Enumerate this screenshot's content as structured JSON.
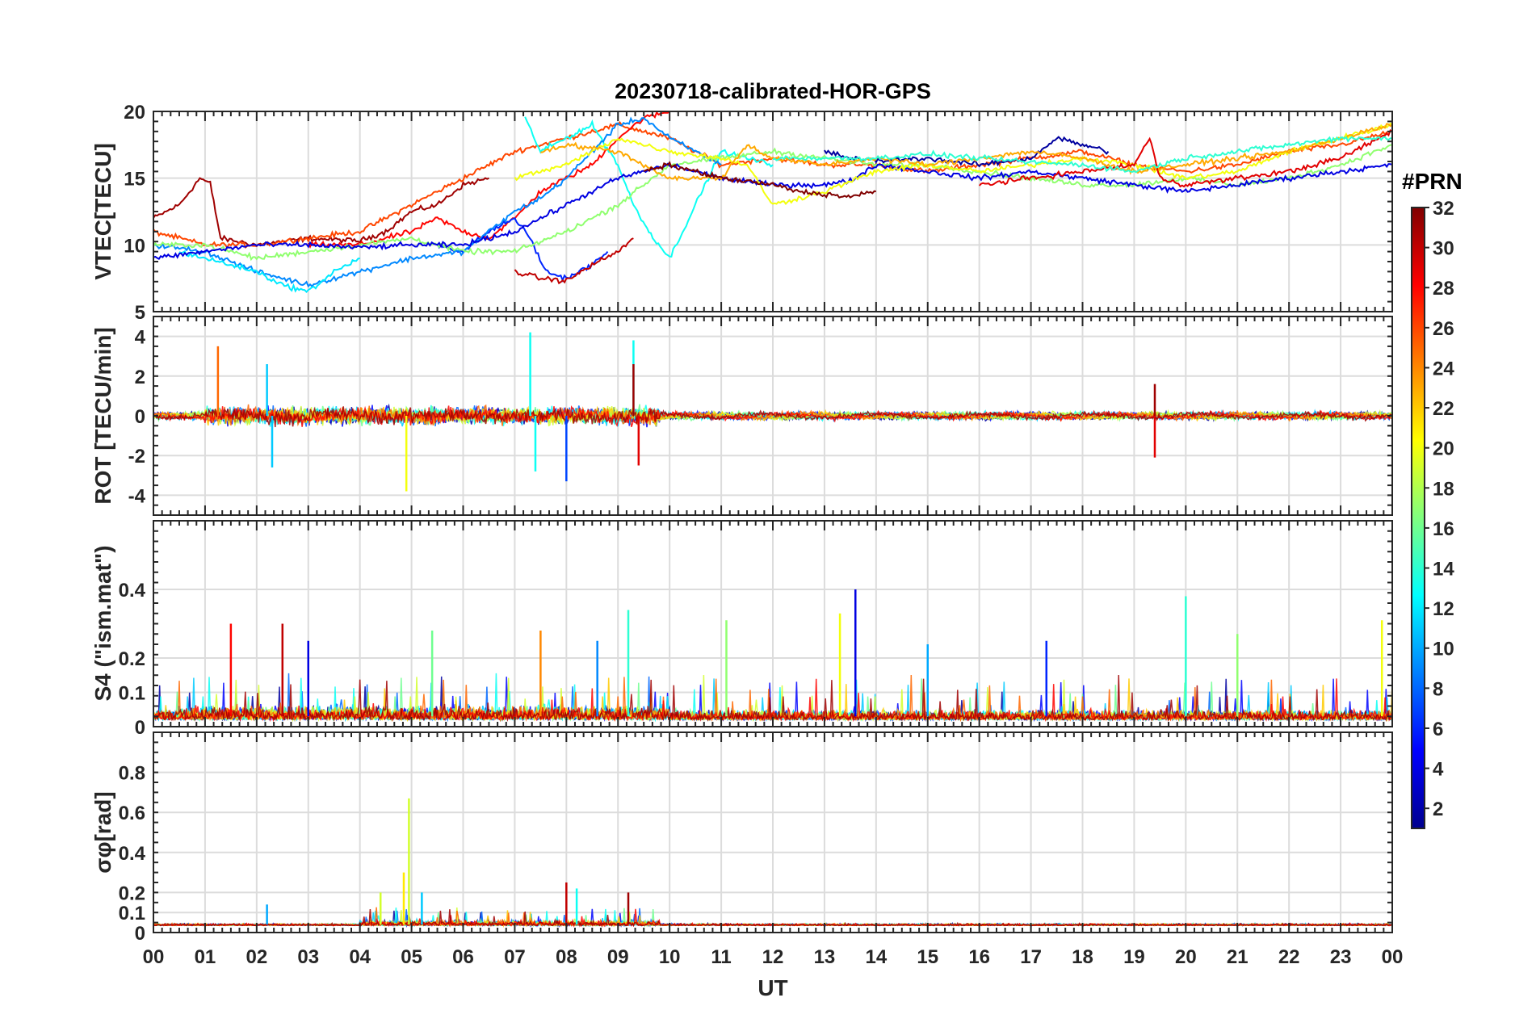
{
  "chart_data": {
    "type": "line",
    "title": "20230718-calibrated-HOR-GPS",
    "xlabel": "UT",
    "x_ticks": [
      "00",
      "01",
      "02",
      "03",
      "04",
      "05",
      "06",
      "07",
      "08",
      "09",
      "10",
      "11",
      "12",
      "13",
      "14",
      "15",
      "16",
      "17",
      "18",
      "19",
      "20",
      "21",
      "22",
      "23",
      "00"
    ],
    "xlim": [
      0,
      24
    ],
    "grid": true,
    "colorbar": {
      "title": "#PRN",
      "range": [
        1,
        32
      ],
      "ticks": [
        "2",
        "4",
        "6",
        "8",
        "10",
        "12",
        "14",
        "16",
        "18",
        "20",
        "22",
        "24",
        "26",
        "28",
        "30",
        "32"
      ],
      "colormap": "jet"
    },
    "panels": [
      {
        "ylabel": "VTEC[TECU]",
        "ylim": [
          5,
          20
        ],
        "y_ticks": [
          "5",
          "10",
          "15",
          "20"
        ],
        "series": [
          {
            "name": "PRN 31",
            "prn": 31,
            "x": [
              0,
              0.5,
              0.9,
              1.1,
              1.3,
              2,
              3,
              4,
              4.5,
              5,
              5.5,
              6,
              6.5
            ],
            "y": [
              12,
              13,
              15,
              14.6,
              10.5,
              10,
              10.5,
              10.3,
              11,
              12.5,
              13,
              14.5,
              15
            ]
          },
          {
            "name": "PRN 26",
            "prn": 26,
            "x": [
              0,
              1,
              2,
              3,
              4,
              5,
              5.5,
              6,
              6.5,
              7,
              7.5,
              8,
              9,
              10,
              11,
              12,
              13,
              14,
              15,
              16,
              17,
              18,
              19,
              20,
              21,
              22,
              23,
              24
            ],
            "y": [
              11,
              10,
              10,
              10.5,
              11,
              13,
              14,
              15,
              16,
              17,
              17.5,
              18,
              19,
              18,
              16,
              16.5,
              16,
              16,
              15.5,
              16,
              16.5,
              17,
              16,
              15.5,
              16,
              17,
              17.5,
              18.5
            ]
          },
          {
            "name": "PRN 28",
            "prn": 28,
            "x": [
              3,
              4,
              5,
              5.5,
              6,
              6.5,
              7,
              7.5,
              8,
              8.5,
              9,
              9.5,
              10
            ],
            "y": [
              10,
              10,
              11,
              12,
              11,
              10.5,
              12,
              14,
              15,
              16,
              18,
              19.5,
              20
            ]
          },
          {
            "name": "PRN 6",
            "prn": 6,
            "x": [
              5.5,
              6,
              6.5,
              7,
              7.3,
              7.6,
              8,
              8.5,
              8.8
            ],
            "y": [
              10,
              9.5,
              11,
              12,
              10.5,
              8,
              7.5,
              8.5,
              9.5
            ]
          },
          {
            "name": "PRN 30",
            "prn": 30,
            "x": [
              7,
              7.5,
              8,
              8.5,
              9,
              9.3
            ],
            "y": [
              8,
              7.5,
              7.3,
              8.5,
              9.5,
              10.5
            ]
          },
          {
            "name": "PRN 13",
            "prn": 13,
            "x": [
              7.2,
              7.5,
              8,
              8.5,
              9,
              9.3,
              9.6,
              10,
              11,
              12
            ],
            "y": [
              19.5,
              17,
              18,
              19,
              16,
              13,
              11,
              9,
              17,
              16
            ]
          },
          {
            "name": "PRN 9",
            "prn": 9,
            "x": [
              0,
              1,
              2,
              2.5,
              3,
              4,
              5,
              6,
              6.5,
              7,
              7.5,
              8,
              8.5,
              9,
              9.5,
              10,
              11
            ],
            "y": [
              10,
              9.5,
              8,
              7.5,
              7,
              8,
              9,
              9.5,
              11,
              12.5,
              13.5,
              15,
              17,
              19,
              19.5,
              18,
              16
            ]
          },
          {
            "name": "PRN 12",
            "prn": 12,
            "x": [
              0.5,
              1,
              2,
              2.5,
              3,
              3.5,
              4
            ],
            "y": [
              9.5,
              9,
              8,
              7,
              6.5,
              8,
              9
            ]
          },
          {
            "name": "PRN 17",
            "prn": 17,
            "x": [
              0,
              1,
              2,
              3,
              4,
              5,
              6,
              7,
              8,
              9,
              10,
              11,
              12,
              13,
              14,
              15,
              16,
              17,
              18,
              19,
              20,
              21,
              22,
              23,
              24
            ],
            "y": [
              10,
              10,
              9,
              9.5,
              10,
              10.5,
              9.5,
              9.5,
              11,
              13,
              16,
              16.5,
              17,
              16.5,
              16,
              16,
              15.5,
              15,
              14.5,
              14.5,
              15,
              14.5,
              15,
              16,
              17.5
            ]
          },
          {
            "name": "PRN 4",
            "prn": 4,
            "x": [
              0,
              1,
              2,
              3,
              4,
              5,
              6,
              7,
              8,
              9,
              10,
              11,
              12,
              13,
              13.5,
              14,
              15,
              16,
              17,
              18,
              19,
              20,
              21,
              22,
              23,
              24
            ],
            "y": [
              9,
              9.5,
              10,
              10,
              9.8,
              10,
              10,
              11,
              13,
              15,
              16,
              15,
              14.5,
              14.5,
              14.8,
              16,
              15.5,
              15,
              15.5,
              15,
              14.5,
              14,
              14.5,
              15,
              15.5,
              16
            ]
          },
          {
            "name": "PRN 2",
            "prn": 2,
            "x": [
              13,
              13.5,
              14,
              15,
              16,
              17,
              17.5,
              18,
              18.5
            ],
            "y": [
              17,
              16.5,
              16.3,
              16.5,
              16,
              16.5,
              18,
              17.5,
              17
            ]
          },
          {
            "name": "PRN 20",
            "prn": 20,
            "x": [
              7,
              8,
              9,
              10,
              11,
              11.5,
              12,
              13,
              14,
              15,
              16,
              17,
              18,
              19,
              20,
              21,
              22,
              23,
              24
            ],
            "y": [
              15,
              16,
              18,
              17,
              16.5,
              16,
              13,
              14,
              15.5,
              16,
              15.5,
              16,
              16.5,
              16,
              15,
              15.5,
              17,
              18,
              19
            ]
          },
          {
            "name": "PRN 23",
            "prn": 23,
            "x": [
              7.5,
              8,
              9,
              10,
              11,
              11.5,
              12,
              13,
              14,
              15,
              16,
              17,
              18,
              19,
              20,
              21,
              22,
              23,
              24
            ],
            "y": [
              17,
              17.5,
              17,
              15,
              15,
              17.5,
              16.5,
              16,
              16.5,
              16,
              16.5,
              17,
              16.5,
              15.5,
              16,
              16.5,
              17,
              18,
              19
            ]
          },
          {
            "name": "PRN 32",
            "prn": 32,
            "x": [
              9.5,
              10,
              11,
              12,
              12.5,
              13,
              13.5,
              14
            ],
            "y": [
              15.5,
              16,
              15,
              14.5,
              14,
              13.8,
              13.6,
              14
            ]
          },
          {
            "name": "PRN 29",
            "prn": 29,
            "x": [
              16,
              17,
              18,
              19,
              19.3,
              19.5,
              20,
              21,
              22,
              23,
              24
            ],
            "y": [
              14.5,
              15,
              15.5,
              16,
              18,
              15,
              14.5,
              15,
              15.5,
              16.5,
              18.5
            ]
          },
          {
            "name": "PRN 14",
            "prn": 14,
            "x": [
              12,
              13,
              14,
              15,
              16,
              17,
              18,
              19,
              20,
              21,
              22,
              23,
              24
            ],
            "y": [
              16.5,
              16.5,
              16.5,
              16.8,
              16.5,
              16.2,
              16,
              15.5,
              16.5,
              17,
              17.5,
              18,
              18
            ]
          }
        ]
      },
      {
        "ylabel": "ROT [TECU/min]",
        "ylim": [
          -5,
          5
        ],
        "y_ticks": [
          "-4",
          "-2",
          "0",
          "2",
          "4"
        ],
        "spikes": [
          {
            "prn": 25,
            "x": 1.25,
            "y": 3.5
          },
          {
            "prn": 11,
            "x": 2.2,
            "y": 2.6
          },
          {
            "prn": 11,
            "x": 2.3,
            "y": -2.6
          },
          {
            "prn": 20,
            "x": 4.9,
            "y": -3.8
          },
          {
            "prn": 13,
            "x": 7.3,
            "y": 4.2
          },
          {
            "prn": 13,
            "x": 7.4,
            "y": -2.8
          },
          {
            "prn": 7,
            "x": 8.0,
            "y": -3.3
          },
          {
            "prn": 13,
            "x": 9.3,
            "y": 3.8
          },
          {
            "prn": 31,
            "x": 9.3,
            "y": 2.6
          },
          {
            "prn": 29,
            "x": 9.4,
            "y": -2.5
          },
          {
            "prn": 31,
            "x": 19.4,
            "y": 1.6
          },
          {
            "prn": 29,
            "x": 19.4,
            "y": -2.1
          }
        ]
      },
      {
        "ylabel": "S4 (\"ism.mat\")",
        "ylim": [
          0,
          0.6
        ],
        "y_ticks": [
          "0",
          "0.1",
          "0.2",
          "0.4"
        ],
        "spikes": [
          {
            "prn": 28,
            "x": 1.5,
            "y": 0.3
          },
          {
            "prn": 30,
            "x": 2.5,
            "y": 0.3
          },
          {
            "prn": 4,
            "x": 3.0,
            "y": 0.25
          },
          {
            "prn": 16,
            "x": 5.4,
            "y": 0.28
          },
          {
            "prn": 24,
            "x": 7.5,
            "y": 0.28
          },
          {
            "prn": 9,
            "x": 8.6,
            "y": 0.25
          },
          {
            "prn": 14,
            "x": 9.2,
            "y": 0.34
          },
          {
            "prn": 17,
            "x": 11.1,
            "y": 0.31
          },
          {
            "prn": 20,
            "x": 13.3,
            "y": 0.33
          },
          {
            "prn": 4,
            "x": 13.6,
            "y": 0.4
          },
          {
            "prn": 10,
            "x": 15.0,
            "y": 0.24
          },
          {
            "prn": 6,
            "x": 17.3,
            "y": 0.25
          },
          {
            "prn": 14,
            "x": 20.0,
            "y": 0.38
          },
          {
            "prn": 17,
            "x": 21.0,
            "y": 0.27
          },
          {
            "prn": 20,
            "x": 23.8,
            "y": 0.31
          }
        ]
      },
      {
        "ylabel": "σφ[rad]",
        "ylim": [
          0,
          1
        ],
        "y_ticks": [
          "0",
          "0.1",
          "0.2",
          "0.4",
          "0.6",
          "0.8"
        ],
        "spikes": [
          {
            "prn": 19,
            "x": 4.95,
            "y": 0.67
          },
          {
            "prn": 21,
            "x": 4.85,
            "y": 0.3
          },
          {
            "prn": 19,
            "x": 4.4,
            "y": 0.2
          },
          {
            "prn": 11,
            "x": 5.2,
            "y": 0.2
          },
          {
            "prn": 30,
            "x": 8.0,
            "y": 0.25
          },
          {
            "prn": 13,
            "x": 8.2,
            "y": 0.22
          },
          {
            "prn": 31,
            "x": 9.2,
            "y": 0.2
          },
          {
            "prn": 10,
            "x": 2.2,
            "y": 0.14
          }
        ]
      }
    ]
  }
}
